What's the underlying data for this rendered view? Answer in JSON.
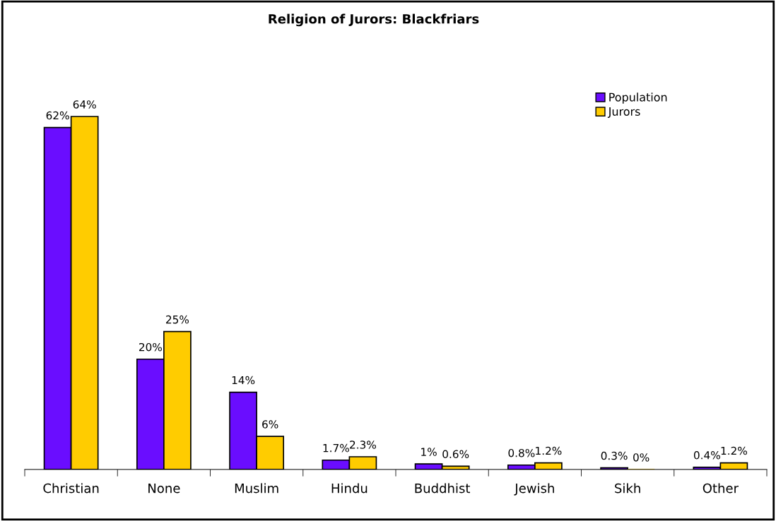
{
  "chart_data": {
    "type": "bar",
    "title": "Religion of Jurors: Blackfriars",
    "categories": [
      "Christian",
      "None",
      "Muslim",
      "Hindu",
      "Buddhist",
      "Jewish",
      "Sikh",
      "Other"
    ],
    "series": [
      {
        "name": "Population",
        "color": "#6a0dff",
        "values": [
          62,
          20,
          14,
          1.7,
          1,
          0.8,
          0.3,
          0.4
        ],
        "value_labels": [
          "62%",
          "20%",
          "14%",
          "1.7%",
          "1%",
          "0.8%",
          "0.3%",
          "0.4%"
        ]
      },
      {
        "name": "Jurors",
        "color": "#ffcc00",
        "values": [
          64,
          25,
          6,
          2.3,
          0.6,
          1.2,
          0,
          1.2
        ],
        "value_labels": [
          "64%",
          "25%",
          "6%",
          "2.3%",
          "0.6%",
          "1.2%",
          "0%",
          "1.2%"
        ]
      }
    ],
    "legend": "top right",
    "grid": false
  }
}
